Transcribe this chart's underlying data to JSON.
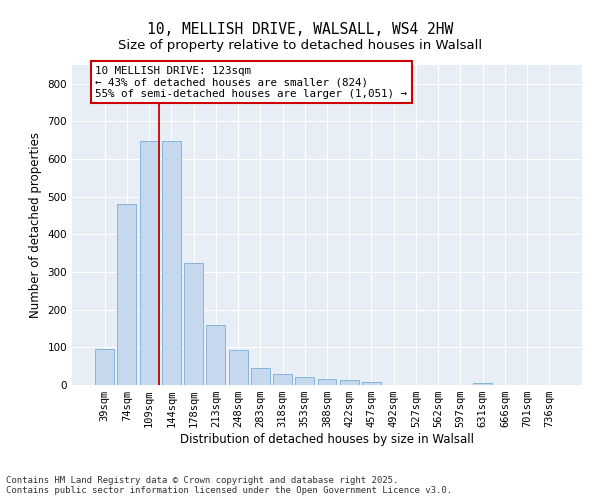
{
  "title1": "10, MELLISH DRIVE, WALSALL, WS4 2HW",
  "title2": "Size of property relative to detached houses in Walsall",
  "xlabel": "Distribution of detached houses by size in Walsall",
  "ylabel": "Number of detached properties",
  "categories": [
    "39sqm",
    "74sqm",
    "109sqm",
    "144sqm",
    "178sqm",
    "213sqm",
    "248sqm",
    "283sqm",
    "318sqm",
    "353sqm",
    "388sqm",
    "422sqm",
    "457sqm",
    "492sqm",
    "527sqm",
    "562sqm",
    "597sqm",
    "631sqm",
    "666sqm",
    "701sqm",
    "736sqm"
  ],
  "values": [
    95,
    480,
    648,
    648,
    325,
    160,
    93,
    44,
    28,
    20,
    15,
    14,
    7,
    0,
    0,
    0,
    0,
    5,
    0,
    0,
    0
  ],
  "bar_color": "#c5d8ee",
  "bar_edge_color": "#7aadd4",
  "vline_x": 2.43,
  "annotation_title": "10 MELLISH DRIVE: 123sqm",
  "annotation_line1": "← 43% of detached houses are smaller (824)",
  "annotation_line2": "55% of semi-detached houses are larger (1,051) →",
  "vline_color": "#cc0000",
  "ylim": [
    0,
    850
  ],
  "yticks": [
    0,
    100,
    200,
    300,
    400,
    500,
    600,
    700,
    800
  ],
  "bg_color": "#e8eef5",
  "footer": "Contains HM Land Registry data © Crown copyright and database right 2025.\nContains public sector information licensed under the Open Government Licence v3.0.",
  "title_fontsize": 10.5,
  "subtitle_fontsize": 9.5,
  "axis_label_fontsize": 8.5,
  "tick_fontsize": 7.5,
  "annotation_fontsize": 7.8,
  "footer_fontsize": 6.5
}
